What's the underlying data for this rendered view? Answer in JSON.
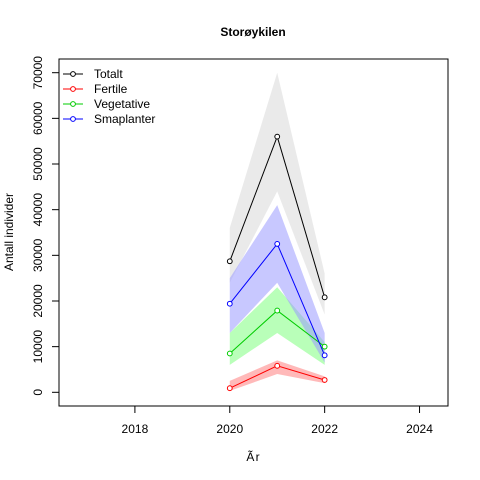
{
  "chart_data": {
    "type": "line",
    "title": "Storøykilen",
    "xlabel": "Ãr",
    "ylabel": "Antall individer",
    "x": [
      2020,
      2021,
      2022
    ],
    "xlim": [
      2016.4,
      2024.6
    ],
    "ylim": [
      -3000,
      73000
    ],
    "xticks": [
      2018,
      2020,
      2022,
      2024
    ],
    "yticks": [
      0,
      10000,
      20000,
      30000,
      40000,
      50000,
      60000,
      70000
    ],
    "legend_position": "top-left",
    "grid": false,
    "series": [
      {
        "name": "Totalt",
        "color": "#000000",
        "band_color": "#d9d9d9",
        "values": [
          28700,
          56000,
          20800
        ],
        "lower": [
          24000,
          44000,
          17000
        ],
        "upper": [
          36000,
          70000,
          26000
        ]
      },
      {
        "name": "Fertile",
        "color": "#ff0000",
        "band_color": "#ff8080",
        "values": [
          900,
          5800,
          2700
        ],
        "lower": [
          300,
          4000,
          2000
        ],
        "upper": [
          2500,
          7000,
          3500
        ]
      },
      {
        "name": "Vegetative",
        "color": "#00cc00",
        "band_color": "#80ff80",
        "values": [
          8500,
          17900,
          10000
        ],
        "lower": [
          6000,
          13000,
          6000
        ],
        "upper": [
          13000,
          23000,
          11000
        ]
      },
      {
        "name": "Smaplanter",
        "color": "#0000ff",
        "band_color": "#9a9aff",
        "values": [
          19400,
          32500,
          8100
        ],
        "lower": [
          13000,
          24000,
          6500
        ],
        "upper": [
          25000,
          41000,
          13000
        ]
      }
    ]
  }
}
